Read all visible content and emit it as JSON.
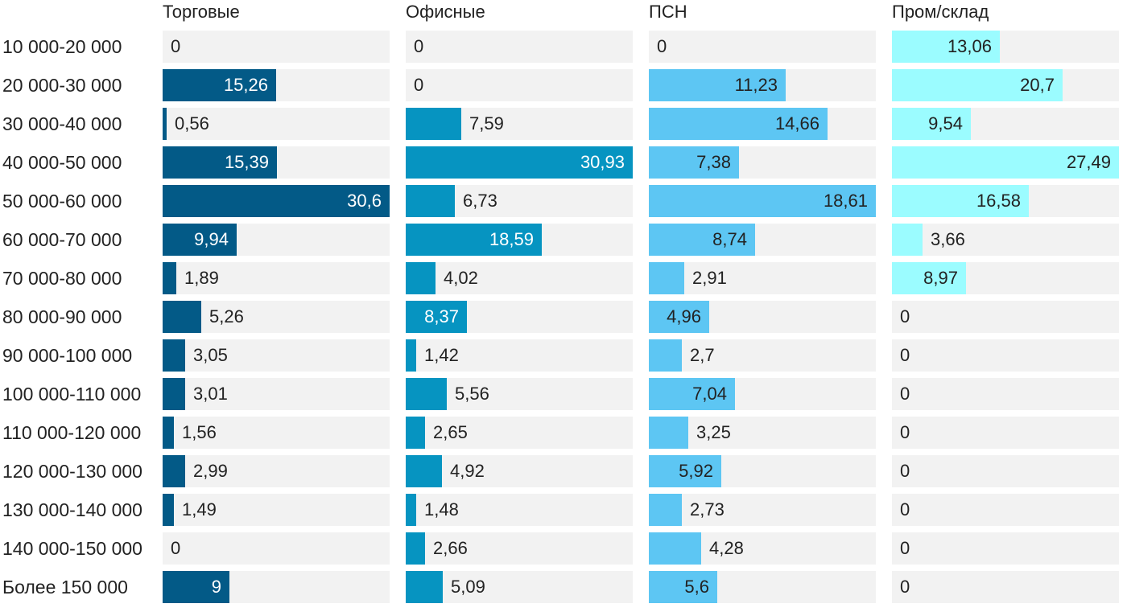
{
  "chart_data": {
    "type": "bar",
    "orientation": "horizontal",
    "layout": "small-multiples",
    "categories": [
      "10 000-20 000",
      "20 000-30 000",
      "30 000-40 000",
      "40 000-50 000",
      "50 000-60 000",
      "60 000-70 000",
      "70 000-80 000",
      "80 000-90 000",
      "90 000-100 000",
      "100 000-110 000",
      "110 000-120 000",
      "120 000-130 000",
      "130 000-140 000",
      "140 000-150 000",
      "Более 150 000"
    ],
    "series": [
      {
        "name": "Торговые",
        "color": "#035a87",
        "max": 30.6,
        "values": [
          0,
          15.26,
          0.56,
          15.39,
          30.6,
          9.94,
          1.89,
          5.26,
          3.05,
          3.01,
          1.56,
          2.99,
          1.49,
          0,
          9
        ],
        "labels": [
          "0",
          "15,26",
          "0,56",
          "15,39",
          "30,6",
          "9,94",
          "1,89",
          "5,26",
          "3,05",
          "3,01",
          "1,56",
          "2,99",
          "1,49",
          "0",
          "9"
        ]
      },
      {
        "name": "Офисные",
        "color": "#0694c1",
        "max": 30.93,
        "values": [
          0,
          0,
          7.59,
          30.93,
          6.73,
          18.59,
          4.02,
          8.37,
          1.42,
          5.56,
          2.65,
          4.92,
          1.48,
          2.66,
          5.09
        ],
        "labels": [
          "0",
          "0",
          "7,59",
          "30,93",
          "6,73",
          "18,59",
          "4,02",
          "8,37",
          "1,42",
          "5,56",
          "2,65",
          "4,92",
          "1,48",
          "2,66",
          "5,09"
        ]
      },
      {
        "name": "ПСН",
        "color": "#5dc6f3",
        "max": 18.61,
        "values": [
          0,
          11.23,
          14.66,
          7.38,
          18.61,
          8.74,
          2.91,
          4.96,
          2.7,
          7.04,
          3.25,
          5.92,
          2.73,
          4.28,
          5.6
        ],
        "labels": [
          "0",
          "11,23",
          "14,66",
          "7,38",
          "18,61",
          "8,74",
          "2,91",
          "4,96",
          "2,7",
          "7,04",
          "3,25",
          "5,92",
          "2,73",
          "4,28",
          "5,6"
        ]
      },
      {
        "name": "Пром/склад",
        "color": "#9bfcff",
        "max": 27.49,
        "values": [
          13.06,
          20.7,
          9.54,
          27.49,
          16.58,
          3.66,
          8.97,
          0,
          0,
          0,
          0,
          0,
          0,
          0,
          0
        ],
        "labels": [
          "13,06",
          "20,7",
          "9,54",
          "27,49",
          "16,58",
          "3,66",
          "8,97",
          "0",
          "0",
          "0",
          "0",
          "0",
          "0",
          "0",
          "0"
        ]
      }
    ],
    "value_label_colors": {
      "Торговые": "#ffffff",
      "Офисные": "#ffffff",
      "ПСН": "#222222",
      "Пром/склад": "#222222",
      "outside": "#222222"
    },
    "track_color": "#f2f2f2",
    "legend": "none",
    "grid": false
  }
}
